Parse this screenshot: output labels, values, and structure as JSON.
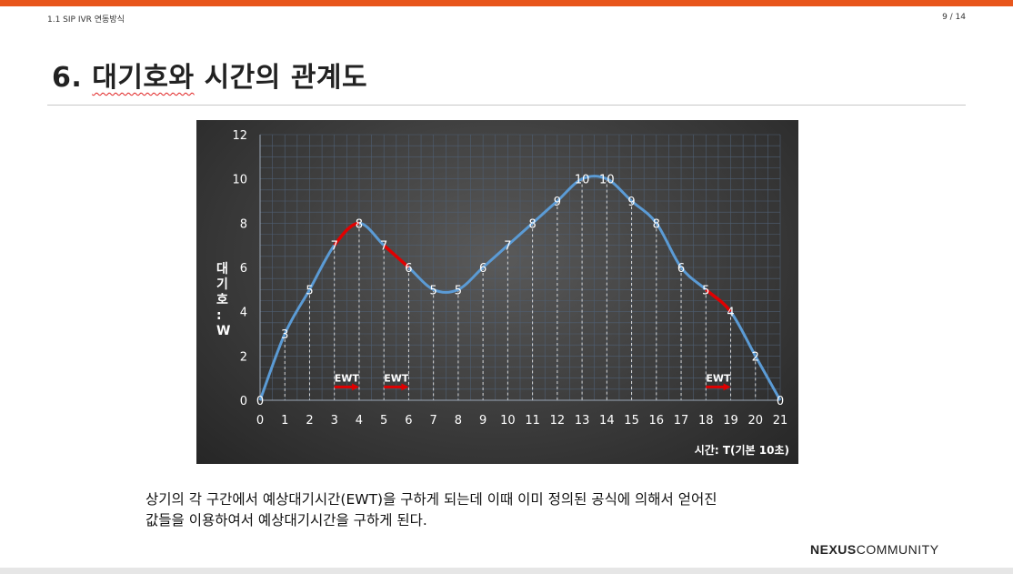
{
  "header": {
    "doc_label": "1.1 SIP IVR 연동방식",
    "page_num": "9 / 14"
  },
  "slide": {
    "title_prefix": "6. ",
    "title_main": "대기호와",
    "title_rest": " 시간의 관계도",
    "body_line1": "상기의 각 구간에서 예상대기시간(EWT)을 구하게 되는데 이때 이미 정의된 공식에 의해서 얻어진",
    "body_line2": "값들을 이용하여서 예상대기시간을 구하게 된다."
  },
  "logo": {
    "bold": "NEXUS",
    "light": "COMMUNITY"
  },
  "colors": {
    "accent": "#e8561c",
    "line": "#5b9bd5",
    "highlight": "#e00000"
  },
  "chart_data": {
    "type": "line",
    "x": [
      0,
      1,
      2,
      3,
      4,
      5,
      6,
      7,
      8,
      9,
      10,
      11,
      12,
      13,
      14,
      15,
      16,
      17,
      18,
      19,
      20,
      21
    ],
    "y": [
      0,
      3,
      5,
      7,
      8,
      7,
      6,
      5,
      5,
      6,
      7,
      8,
      9,
      10,
      10,
      9,
      8,
      6,
      5,
      4,
      2,
      0
    ],
    "xlabel": "시간: T(기본 10초)",
    "ylabel": "대기호:W",
    "ylim": [
      0,
      12
    ],
    "yticks": [
      0,
      2,
      4,
      6,
      8,
      10,
      12
    ],
    "grid": true,
    "highlight_segments": [
      [
        3,
        4
      ],
      [
        5,
        6
      ],
      [
        18,
        19
      ]
    ],
    "annotations": [
      {
        "text": "EWT",
        "x_start": 3,
        "x_end": 4
      },
      {
        "text": "EWT",
        "x_start": 5,
        "x_end": 6
      },
      {
        "text": "EWT",
        "x_start": 18,
        "x_end": 19
      }
    ]
  }
}
